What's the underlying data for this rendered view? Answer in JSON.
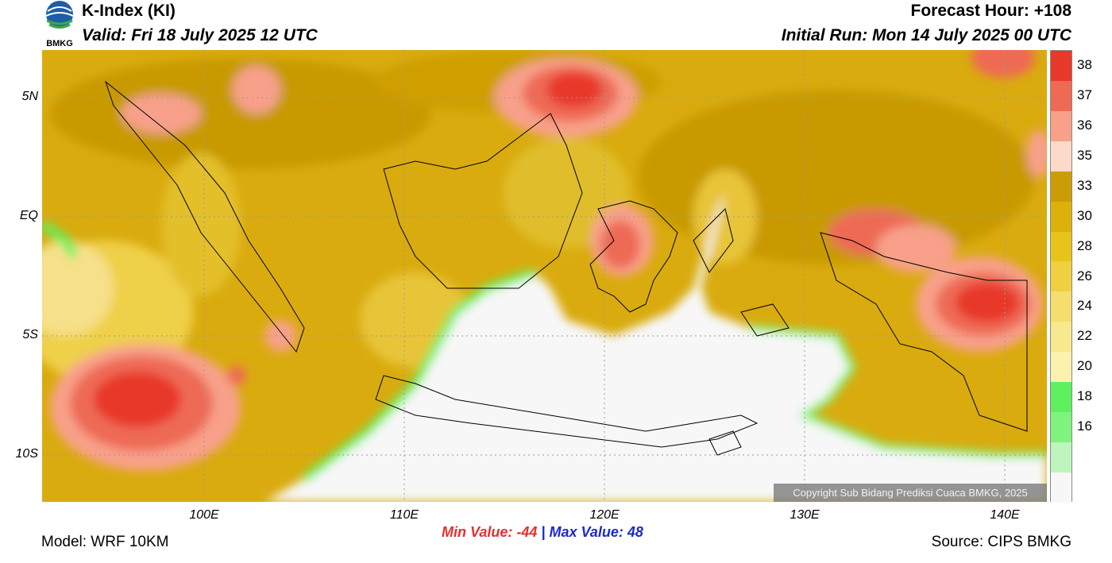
{
  "header": {
    "title": "K-Index (KI)",
    "valid": "Valid: Fri 18 July 2025 12 UTC",
    "forecast_hour": "Forecast Hour: +108",
    "initial_run": "Initial Run: Mon 14 July 2025 00 UTC"
  },
  "logo": {
    "text": "BMKG",
    "icon": "bmkg-logo-icon"
  },
  "axes": {
    "lat_labels": [
      "5N",
      "EQ",
      "5S",
      "10S"
    ],
    "lon_labels": [
      "100E",
      "110E",
      "120E",
      "130E",
      "140E"
    ]
  },
  "colorbar": {
    "labels": [
      "38",
      "37",
      "36",
      "35",
      "33",
      "30",
      "28",
      "26",
      "24",
      "22",
      "20",
      "18",
      "16"
    ],
    "colors": [
      "#e8392a",
      "#ee6a55",
      "#f8a08a",
      "#fcd9c8",
      "#cc9c06",
      "#dcb20a",
      "#e8c41a",
      "#f0d040",
      "#f5de6e",
      "#f8e88e",
      "#fcf2b0",
      "#5ff05f",
      "#7ff27f",
      "#bdf5bd",
      "#f7f7f7"
    ]
  },
  "legend": {
    "min_label": "Min Value:",
    "min_value": "-44",
    "separator": "|",
    "max_label": "Max Value:",
    "max_value": "48"
  },
  "footer": {
    "model": "Model: WRF 10KM",
    "source": "Source: CIPS BMKG",
    "copyright": "Copyright Sub Bidang Prediksi Cuaca BMKG, 2025"
  }
}
